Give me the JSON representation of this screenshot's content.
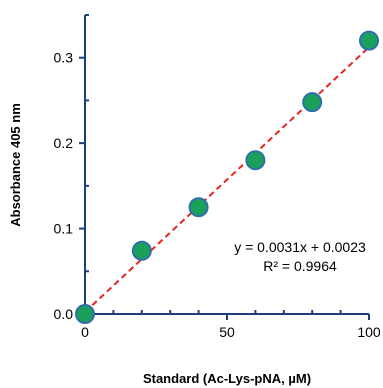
{
  "chart_data": {
    "type": "scatter",
    "xlabel": "Standard (Ac-Lys-pNA, µM)",
    "ylabel": "Absorbance 405 nm",
    "xlim": [
      0,
      100
    ],
    "ylim": [
      0,
      0.35
    ],
    "x_ticks": [
      0,
      50,
      100
    ],
    "x_tick_labels": [
      "0",
      "50",
      "100"
    ],
    "y_ticks": [
      0.0,
      0.1,
      0.2,
      0.3
    ],
    "y_tick_labels": [
      "0.0",
      "0.1",
      "0.2",
      "0.3"
    ],
    "series": [
      {
        "x": [
          0,
          20,
          40,
          60,
          80,
          100
        ],
        "y": [
          0.0,
          0.074,
          0.125,
          0.18,
          0.248,
          0.32
        ]
      }
    ],
    "trendline": {
      "slope": 0.0031,
      "intercept": 0.0023,
      "style": "dashed"
    },
    "annotations": {
      "equation": "y = 0.0031x + 0.0023",
      "r_squared": "R² = 0.9964"
    },
    "grid": false,
    "colors": {
      "marker_fill": "#1aa05a",
      "marker_edge": "#2f6faa",
      "trendline": "#e8231f",
      "axis": "#1f3f7a"
    }
  }
}
